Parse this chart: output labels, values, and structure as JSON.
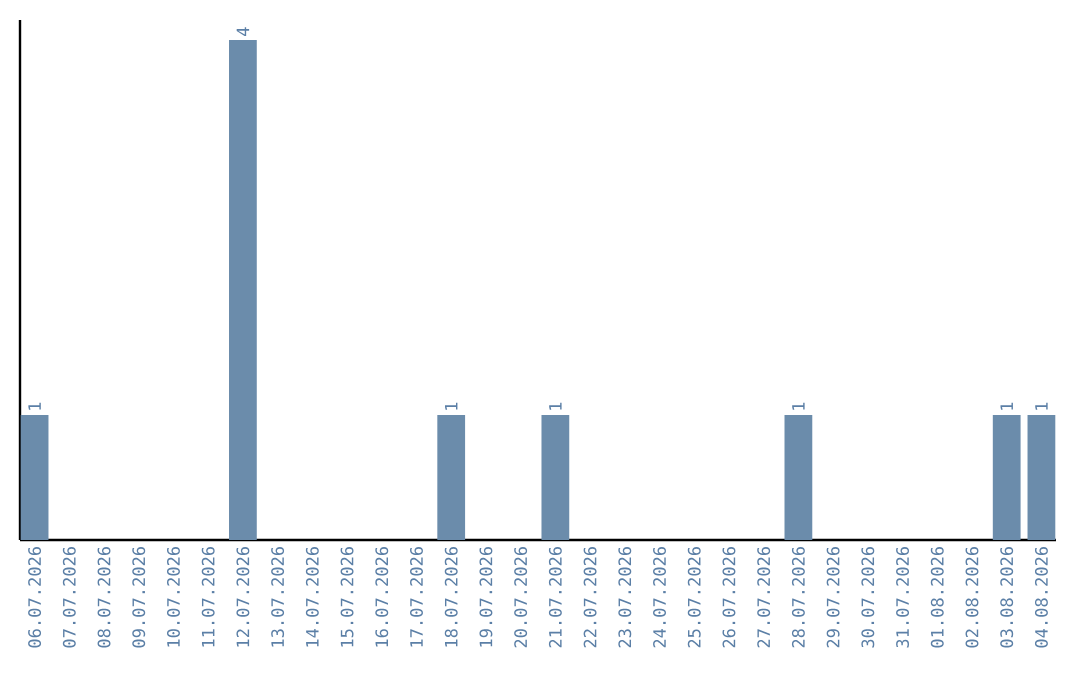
{
  "chart_data": {
    "type": "bar",
    "color": "#6b8cab",
    "categories": [
      "06.07.2026",
      "07.07.2026",
      "08.07.2026",
      "09.07.2026",
      "10.07.2026",
      "11.07.2026",
      "12.07.2026",
      "13.07.2026",
      "14.07.2026",
      "15.07.2026",
      "16.07.2026",
      "17.07.2026",
      "18.07.2026",
      "19.07.2026",
      "20.07.2026",
      "21.07.2026",
      "22.07.2026",
      "23.07.2026",
      "24.07.2026",
      "25.07.2026",
      "26.07.2026",
      "27.07.2026",
      "28.07.2026",
      "29.07.2026",
      "30.07.2026",
      "31.07.2026",
      "01.08.2026",
      "02.08.2026",
      "03.08.2026",
      "04.08.2026"
    ],
    "values": [
      1,
      0,
      0,
      0,
      0,
      0,
      4,
      0,
      0,
      0,
      0,
      0,
      1,
      0,
      0,
      1,
      0,
      0,
      0,
      0,
      0,
      0,
      1,
      0,
      0,
      0,
      0,
      0,
      1,
      1
    ],
    "value_labels": [
      "1",
      null,
      null,
      null,
      null,
      null,
      "4",
      null,
      null,
      null,
      null,
      null,
      "1",
      null,
      null,
      "1",
      null,
      null,
      null,
      null,
      null,
      null,
      "1",
      null,
      null,
      null,
      null,
      null,
      "1",
      "1"
    ],
    "grid": false
  }
}
